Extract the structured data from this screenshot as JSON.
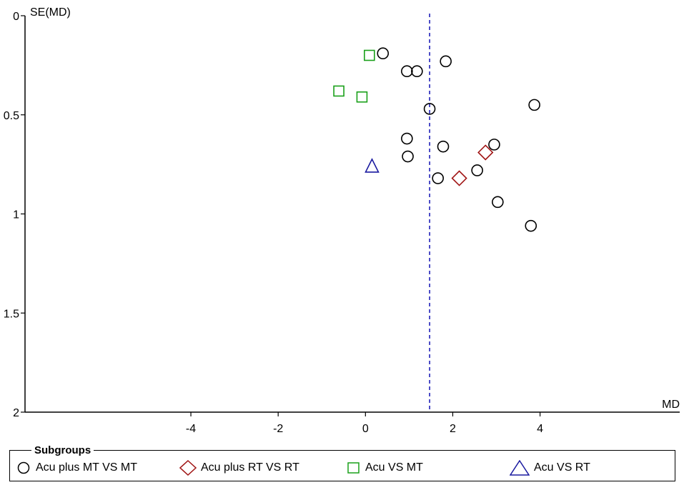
{
  "chart_data": {
    "type": "scatter",
    "title": "",
    "xlabel": "MD",
    "ylabel": "SE(MD)",
    "xlim": [
      -7.8,
      7.2
    ],
    "ylim": [
      0,
      2
    ],
    "y_inverted": true,
    "x_ticks": [
      -4,
      -2,
      0,
      2,
      4
    ],
    "x_tick_labels": [
      "-4",
      "-2",
      "0",
      "2",
      "4"
    ],
    "y_ticks": [
      0,
      0.5,
      1,
      1.5,
      2
    ],
    "y_tick_labels": [
      "0",
      "0.5",
      "1",
      "1.5",
      "2"
    ],
    "grid": false,
    "reference_line": {
      "x": 1.47,
      "style": "dashed",
      "color": "#1f1fb8"
    },
    "legend": {
      "title": "Subgroups",
      "placement": "bottom"
    },
    "series": [
      {
        "name": "Acu plus MT VS MT",
        "marker": "circle",
        "color": "#000000",
        "points": [
          {
            "x": 0.4,
            "y": 0.19
          },
          {
            "x": 0.95,
            "y": 0.28
          },
          {
            "x": 1.18,
            "y": 0.28
          },
          {
            "x": 1.84,
            "y": 0.23
          },
          {
            "x": 1.47,
            "y": 0.47
          },
          {
            "x": 3.87,
            "y": 0.45
          },
          {
            "x": 0.95,
            "y": 0.62
          },
          {
            "x": 0.97,
            "y": 0.71
          },
          {
            "x": 1.78,
            "y": 0.66
          },
          {
            "x": 2.95,
            "y": 0.65
          },
          {
            "x": 2.56,
            "y": 0.78
          },
          {
            "x": 1.66,
            "y": 0.82
          },
          {
            "x": 3.03,
            "y": 0.94
          },
          {
            "x": 3.79,
            "y": 1.06
          }
        ]
      },
      {
        "name": "Acu plus RT VS RT",
        "marker": "diamond",
        "color": "#a01414",
        "points": [
          {
            "x": 2.15,
            "y": 0.82
          },
          {
            "x": 2.75,
            "y": 0.69
          }
        ]
      },
      {
        "name": "Acu VS MT",
        "marker": "square",
        "color": "#1aa01a",
        "points": [
          {
            "x": 0.09,
            "y": 0.2
          },
          {
            "x": -0.61,
            "y": 0.38
          },
          {
            "x": -0.08,
            "y": 0.41
          }
        ]
      },
      {
        "name": "Acu VS RT",
        "marker": "triangle",
        "color": "#1a1aa0",
        "points": [
          {
            "x": 0.15,
            "y": 0.76
          }
        ]
      }
    ]
  }
}
